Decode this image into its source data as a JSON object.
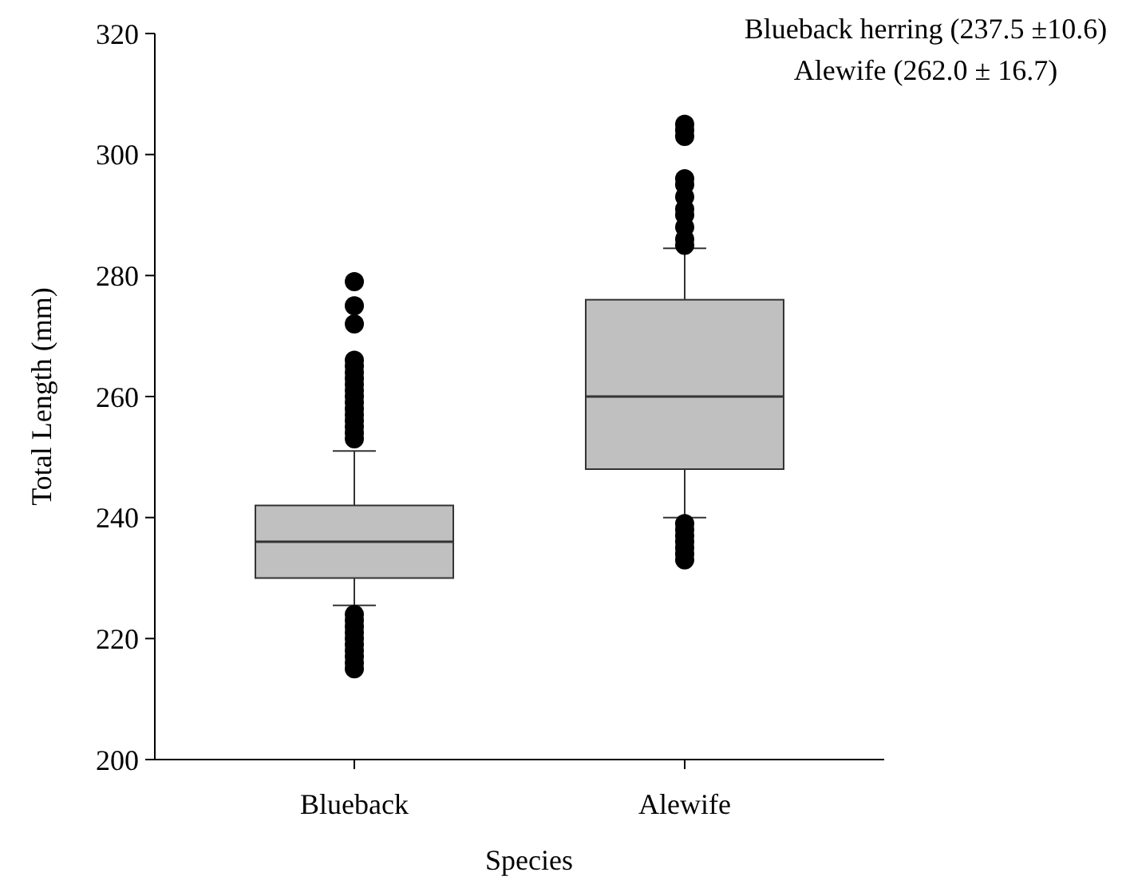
{
  "chart_data": {
    "type": "box",
    "xlabel": "Species",
    "ylabel": "Total Length (mm)",
    "categories": [
      "Blueback",
      "Alewife"
    ],
    "ylim": [
      200,
      320
    ],
    "yticks": [
      200,
      220,
      240,
      260,
      280,
      300,
      320
    ],
    "color": "#c0c0c0",
    "boxes": [
      {
        "low": 225.5,
        "q1": 230,
        "median": 236,
        "q3": 242,
        "high": 251,
        "outliers": [
          279,
          275,
          272,
          266,
          265,
          264,
          263,
          262,
          261,
          260,
          259,
          258,
          257,
          256,
          255,
          254,
          253,
          224,
          223,
          222,
          221,
          220,
          219,
          218,
          217,
          216,
          215
        ]
      },
      {
        "low": 240,
        "q1": 248,
        "median": 260,
        "q3": 276,
        "high": 284.5,
        "outliers": [
          305,
          304,
          303,
          296,
          295,
          293,
          291,
          290,
          288,
          286,
          285,
          239,
          238,
          237,
          236,
          235,
          234,
          233
        ]
      }
    ],
    "annotations": [
      "Blueback herring (237.5 ±10.6)",
      "Alewife (262.0 ± 16.7)"
    ]
  }
}
